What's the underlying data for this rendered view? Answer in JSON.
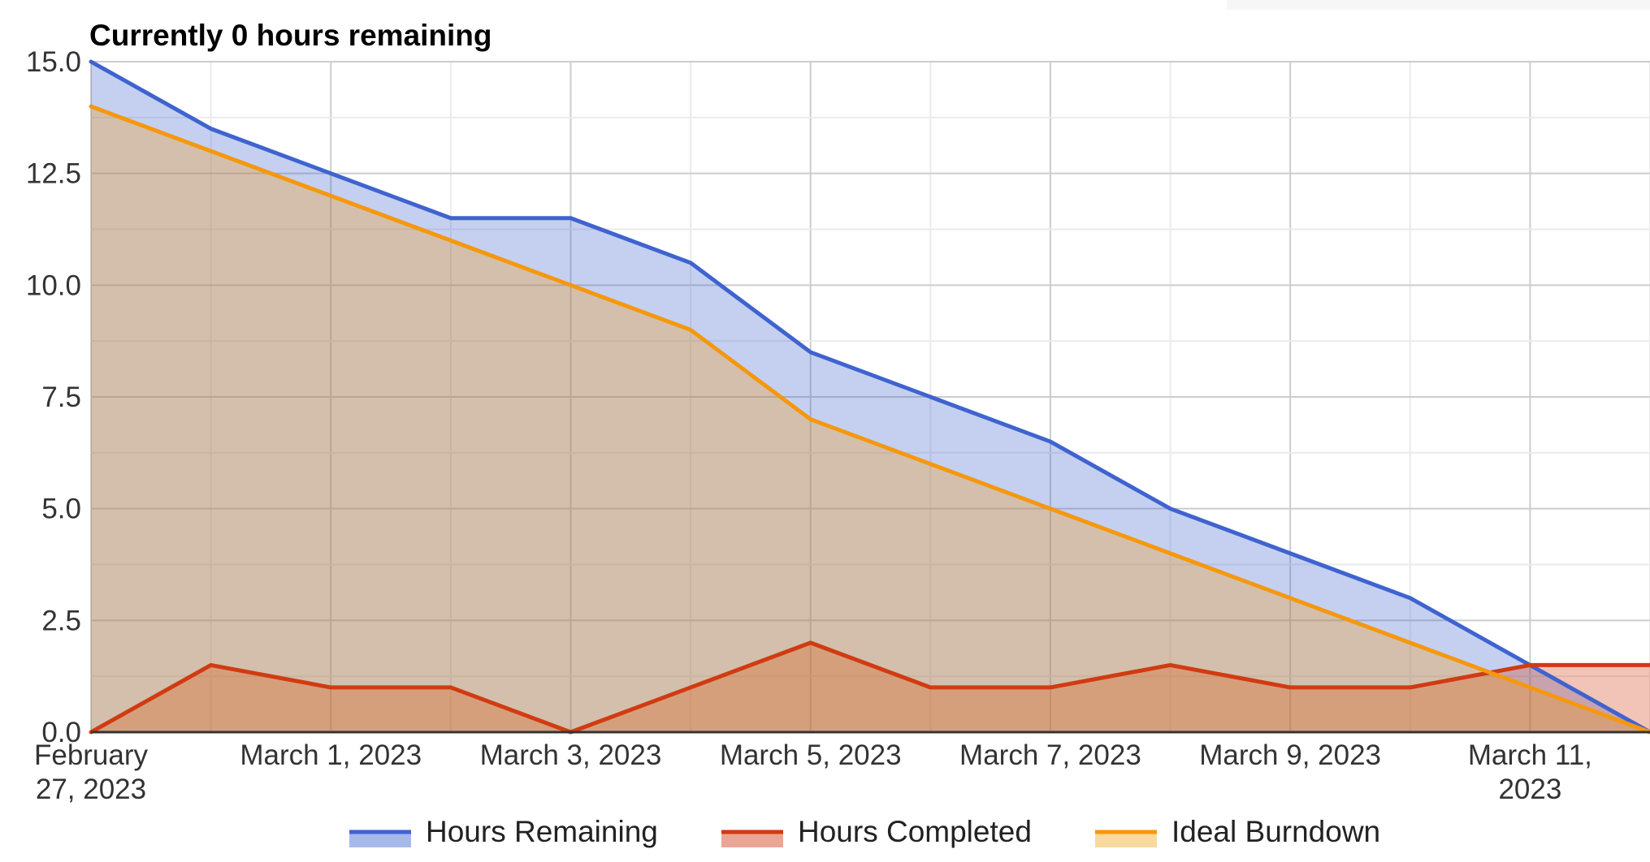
{
  "chart_data": {
    "type": "area",
    "title": "Currently 0 hours remaining",
    "x": [
      "2023-02-27",
      "2023-02-28",
      "2023-03-01",
      "2023-03-02",
      "2023-03-03",
      "2023-03-04",
      "2023-03-05",
      "2023-03-06",
      "2023-03-07",
      "2023-03-08",
      "2023-03-09",
      "2023-03-10",
      "2023-03-11",
      "2023-03-12"
    ],
    "xlim": [
      "2023-02-27",
      "2023-03-12"
    ],
    "ylim": [
      0,
      15
    ],
    "y_ticks": [
      "0.0",
      "2.5",
      "5.0",
      "7.5",
      "10.0",
      "12.5",
      "15.0"
    ],
    "x_ticks": [
      {
        "date": "2023-02-27",
        "lines": [
          "February",
          "27, 2023"
        ]
      },
      {
        "date": "2023-03-01",
        "lines": [
          "March 1, 2023"
        ]
      },
      {
        "date": "2023-03-03",
        "lines": [
          "March 3, 2023"
        ]
      },
      {
        "date": "2023-03-05",
        "lines": [
          "March 5, 2023"
        ]
      },
      {
        "date": "2023-03-07",
        "lines": [
          "March 7, 2023"
        ]
      },
      {
        "date": "2023-03-09",
        "lines": [
          "March 9, 2023"
        ]
      },
      {
        "date": "2023-03-11",
        "lines": [
          "March 11,",
          "2023"
        ]
      }
    ],
    "grid": true,
    "legend": "bottom",
    "series": [
      {
        "name": "Hours Remaining",
        "color": "#3f63cf",
        "fill": "#a6b9ea",
        "values": [
          15,
          13.5,
          12.5,
          11.5,
          11.5,
          10.5,
          8.5,
          7.5,
          6.5,
          5,
          4,
          3,
          1.5,
          0
        ]
      },
      {
        "name": "Hours Completed",
        "color": "#d13b12",
        "fill": "#e9a695",
        "values": [
          0,
          1.5,
          1,
          1,
          0,
          1,
          2,
          1,
          1,
          1.5,
          1,
          1,
          1.5,
          1.5
        ]
      },
      {
        "name": "Ideal Burndown",
        "color": "#f5980d",
        "fill": "#f8d9a0",
        "values": [
          14,
          13,
          12,
          11,
          10,
          9,
          7,
          6,
          5,
          4,
          3,
          2,
          1,
          0
        ]
      }
    ]
  }
}
